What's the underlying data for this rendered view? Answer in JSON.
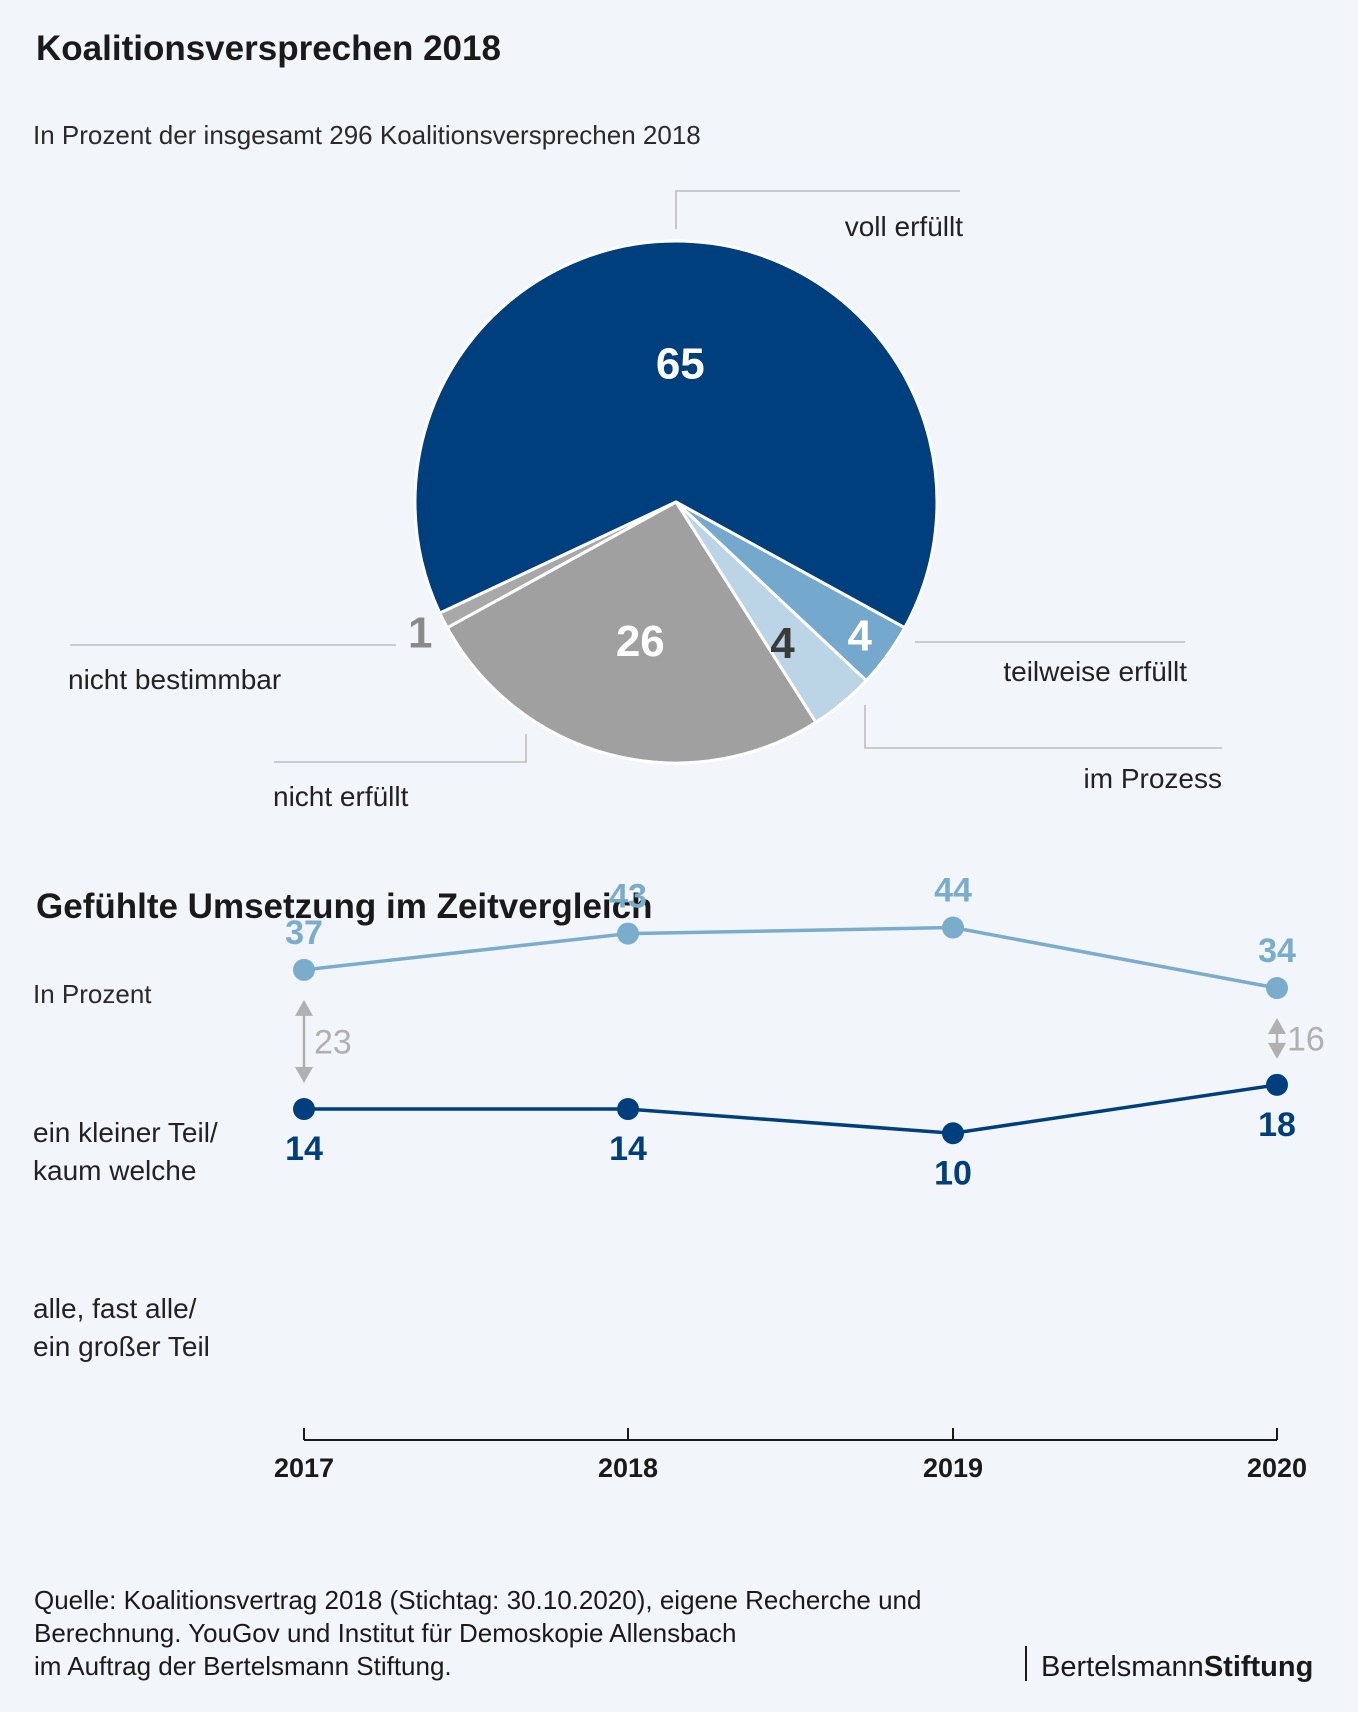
{
  "chart_data": [
    {
      "type": "pie",
      "title": "Koalitionsversprechen 2018",
      "subtitle": "In Prozent der insgesamt 296 Koalitionsversprechen 2018",
      "slices": [
        {
          "name": "voll erfüllt",
          "value": 65,
          "color": "#003f7d"
        },
        {
          "name": "teilweise erfüllt",
          "value": 4,
          "color": "#74a9cd"
        },
        {
          "name": "im Prozess",
          "value": 4,
          "color": "#bcd5e6"
        },
        {
          "name": "nicht erfüllt",
          "value": 26,
          "color": "#a0a0a0"
        },
        {
          "name": "nicht bestimmbar",
          "value": 1,
          "color": "#a8a8a8"
        }
      ]
    },
    {
      "type": "line",
      "title": "Gefühlte Umsetzung im Zeitvergleich",
      "subtitle": "In Prozent",
      "categories": [
        "2017",
        "2018",
        "2019",
        "2020"
      ],
      "series": [
        {
          "name": "ein kleiner Teil/ kaum welche",
          "name_lines": [
            "ein kleiner Teil/",
            "kaum welche"
          ],
          "values": [
            37,
            43,
            44,
            34
          ],
          "color": "#7aaccb"
        },
        {
          "name": "alle, fast alle/ ein großer Teil",
          "name_lines": [
            "alle, fast alle/",
            "ein großer Teil"
          ],
          "values": [
            14,
            14,
            10,
            18
          ],
          "color": "#003f7d"
        }
      ],
      "differences": [
        {
          "category": "2017",
          "value": 23
        },
        {
          "category": "2020",
          "value": 16
        }
      ],
      "diff_color": "#b0b0b0"
    }
  ],
  "source_lines": [
    "Quelle: Koalitionsvertrag 2018 (Stichtag: 30.10.2020), eigene Recherche und",
    "Berechnung. YouGov und Institut für Demoskopie Allensbach",
    "im Auftrag der Bertelsmann Stiftung."
  ],
  "logo": {
    "part1": "Bertelsmann",
    "part2": "Stiftung"
  }
}
